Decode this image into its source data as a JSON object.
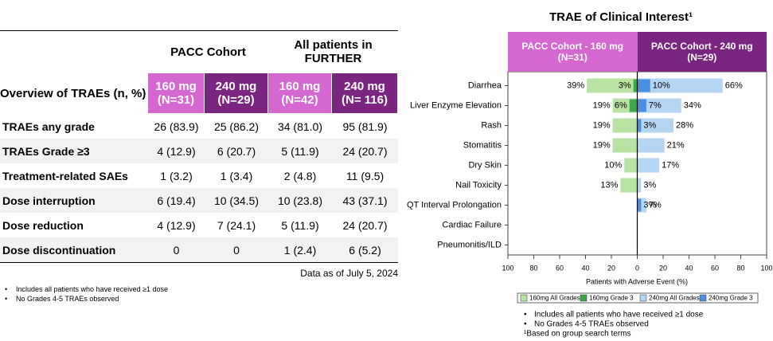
{
  "table": {
    "group_headers": [
      "PACC Cohort",
      "All patients in FURTHER"
    ],
    "columns": [
      "Overview of TRAEs (n, %)",
      "160 mg (N=31)",
      "240 mg (N=29)",
      "160 mg (N=42)",
      "240 mg (N= 116)"
    ],
    "rows": [
      [
        "TRAEs any grade",
        "26 (83.9)",
        "25 (86.2)",
        "34 (81.0)",
        "95 (81.9)"
      ],
      [
        "TRAEs Grade ≥3",
        "4 (12.9)",
        "6 (20.7)",
        "5 (11.9)",
        "24 (20.7)"
      ],
      [
        "Treatment-related SAEs",
        "1 (3.2)",
        "1 (3.4)",
        "2 (4.8)",
        "11 (9.5)"
      ],
      [
        "Dose interruption",
        "6 (19.4)",
        "10 (34.5)",
        "10 (23.8)",
        "43 (37.1)"
      ],
      [
        "Dose reduction",
        "4 (12.9)",
        "7 (24.1)",
        "5 (11.9)",
        "24 (20.7)"
      ],
      [
        "Dose discontinuation",
        "0",
        "0",
        "1 (2.4)",
        "6 (5.2)"
      ]
    ],
    "footnote": "Data as of July 5, 2024",
    "notes": [
      "Includes all patients who have received ≥1 dose",
      "No Grades 4-5 TRAEs observed"
    ]
  },
  "chart_data": {
    "type": "bar",
    "orientation": "horizontal",
    "title": "TRAE of Clinical Interest¹",
    "panels": [
      "PACC Cohort - 160 mg (N=31)",
      "PACC Cohort - 240 mg (N=29)"
    ],
    "categories": [
      "Diarrhea",
      "Liver Enzyme Elevation",
      "Rash",
      "Stomatitis",
      "Dry Skin",
      "Nail Toxicity",
      "QT Interval Prolongation",
      "Cardiac Failure",
      "Pneumonitis/ILD"
    ],
    "series": [
      {
        "name": "160mg All Grades",
        "color": "#b8e3a3",
        "values": [
          39,
          19,
          19,
          19,
          10,
          13,
          null,
          null,
          null
        ],
        "value_labels": [
          "39%",
          "19%",
          "19%",
          "19%",
          "10%",
          "13%",
          null,
          null,
          null
        ]
      },
      {
        "name": "160mg Grade 3",
        "color": "#3da848",
        "values": [
          3,
          6,
          null,
          null,
          null,
          null,
          null,
          null,
          null
        ],
        "value_labels": [
          "3%",
          "6%",
          null,
          null,
          null,
          null,
          null,
          null,
          null
        ]
      },
      {
        "name": "240mg All Grades",
        "color": "#b5d5f5",
        "values": [
          66,
          34,
          28,
          21,
          17,
          3,
          7,
          null,
          null
        ],
        "value_labels": [
          "66%",
          "34%",
          "28%",
          "21%",
          "17%",
          "3%",
          "7%",
          null,
          null
        ]
      },
      {
        "name": "240mg Grade 3",
        "color": "#4a90e2",
        "values": [
          10,
          7,
          3,
          null,
          null,
          null,
          3,
          null,
          null
        ],
        "value_labels": [
          "10%",
          "7%",
          "3%",
          null,
          null,
          null,
          "3%",
          null,
          null
        ]
      }
    ],
    "xlabel": "Patients with Adverse Event (%)",
    "xlim": [
      -100,
      100
    ],
    "xticks": [
      {
        "value": -100,
        "label": "100"
      },
      {
        "value": -80,
        "label": "80"
      },
      {
        "value": -60,
        "label": "60"
      },
      {
        "value": -40,
        "label": "40"
      },
      {
        "value": -20,
        "label": "20"
      },
      0,
      20,
      40,
      60,
      80,
      100
    ],
    "notes": [
      "Includes all patients who have received ≥1 dose",
      "No Grades 4-5 TRAEs observed",
      "¹Based on group search terms"
    ]
  }
}
